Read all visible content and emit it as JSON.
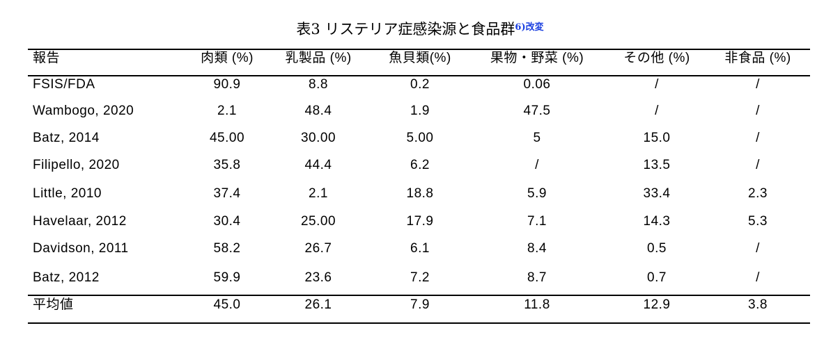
{
  "title": {
    "text": "表3 リステリア症感染源と食品群",
    "ref": "6)改変"
  },
  "table": {
    "headers": [
      "報告",
      "肉類 (%)",
      "乳製品 (%)",
      "魚貝類(%)",
      "果物・野菜 (%)",
      "その他 (%)",
      "非食品 (%)"
    ],
    "rows": [
      [
        "FSIS/FDA",
        "90.9",
        "8.8",
        "0.2",
        "0.06",
        "/",
        "/"
      ],
      [
        "Wambogo, 2020",
        "2.1",
        "48.4",
        "1.9",
        "47.5",
        "/",
        "/"
      ],
      [
        "Batz, 2014",
        "45.00",
        "30.00",
        "5.00",
        "5",
        "15.0",
        "/"
      ],
      [
        "Filipello, 2020",
        "35.8",
        "44.4",
        "6.2",
        "/",
        "13.5",
        "/"
      ],
      [
        "Little, 2010",
        "37.4",
        "2.1",
        "18.8",
        "5.9",
        "33.4",
        "2.3"
      ],
      [
        "Havelaar, 2012",
        "30.4",
        "25.00",
        "17.9",
        "7.1",
        "14.3",
        "5.3"
      ],
      [
        "Davidson, 2011",
        "58.2",
        "26.7",
        "6.1",
        "8.4",
        "0.5",
        "/"
      ],
      [
        "Batz, 2012",
        "59.9",
        "23.6",
        "7.2",
        "8.7",
        "0.7",
        "/"
      ]
    ],
    "average": [
      "平均値",
      "45.0",
      "26.1",
      "7.9",
      "11.8",
      "12.9",
      "3.8"
    ]
  }
}
